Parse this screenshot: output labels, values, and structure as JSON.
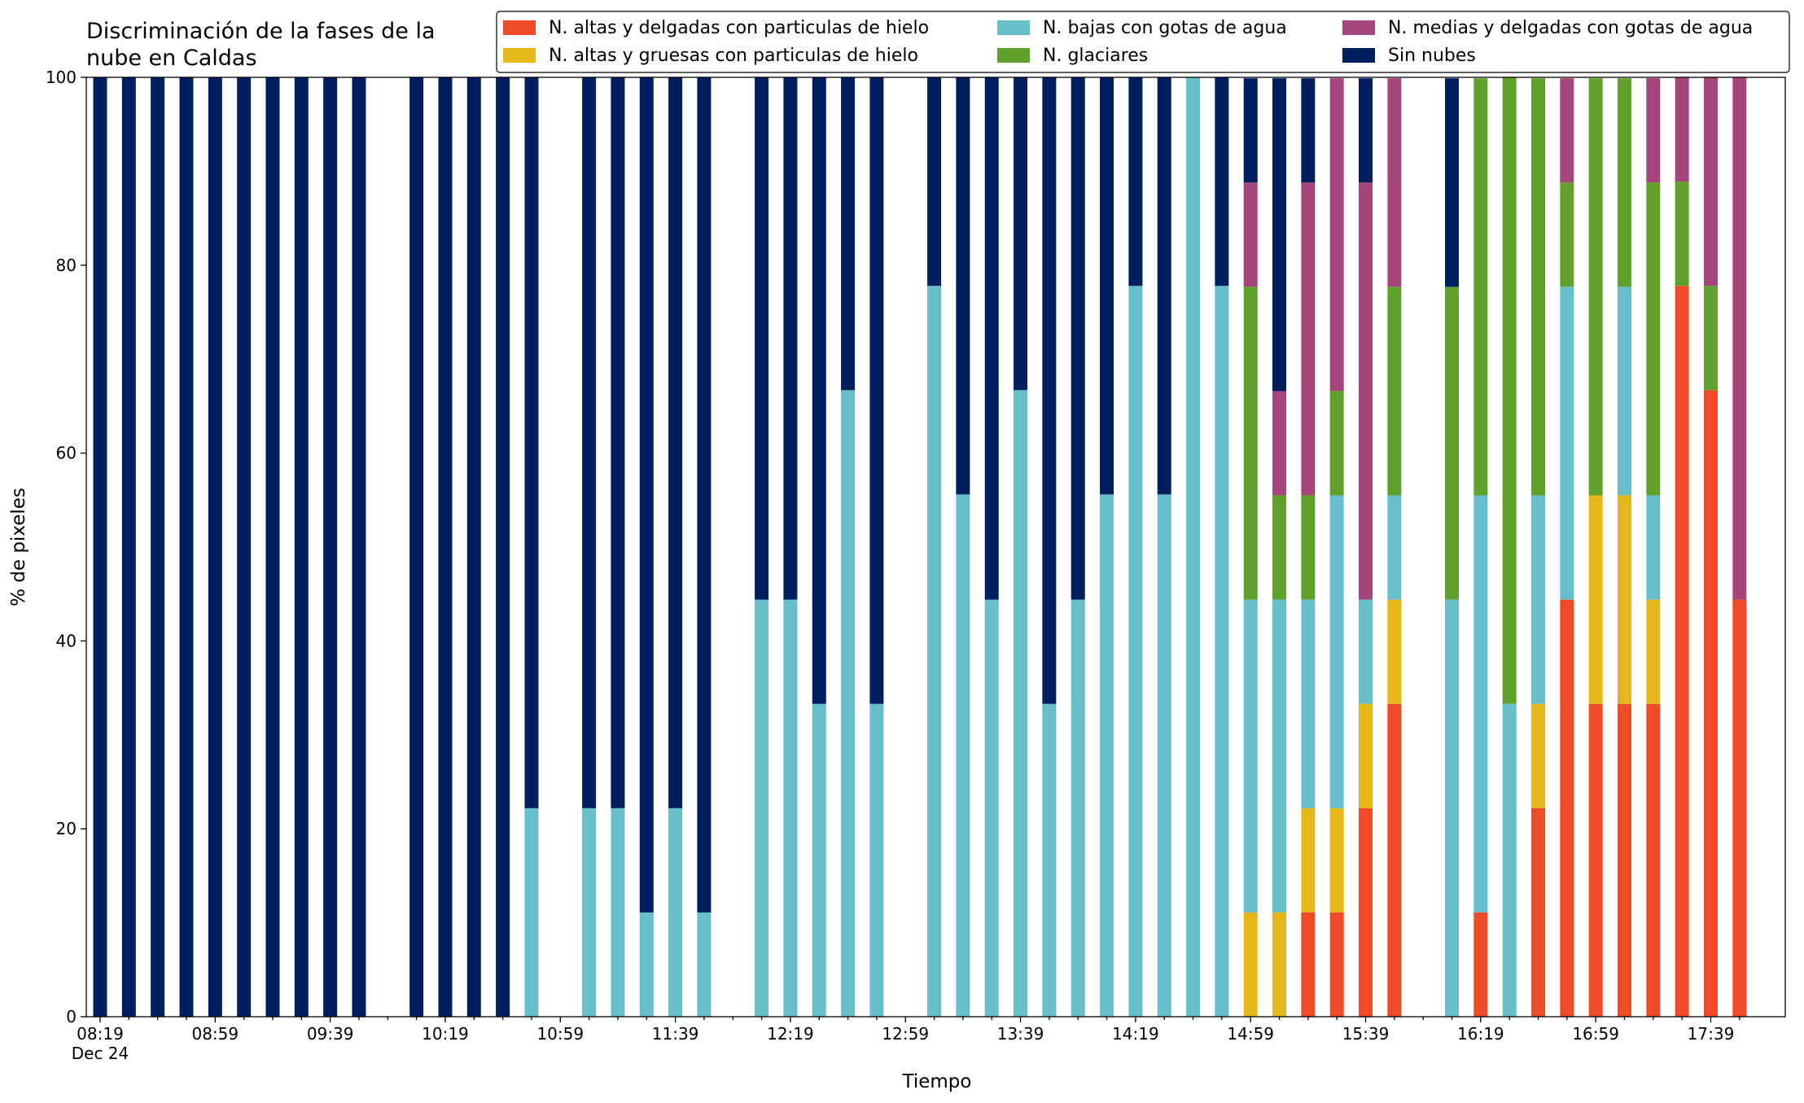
{
  "chart_data": {
    "type": "stacked_bar",
    "title": "Discriminación de la fases de la\nnube en Caldas",
    "x_label": "Tiempo",
    "y_label": "% de pixeles",
    "x_date_label": "Dec 24",
    "categories": [
      "08:19",
      null,
      null,
      null,
      "08:59",
      null,
      null,
      null,
      "09:39",
      null,
      null,
      null,
      "10:19",
      null,
      null,
      null,
      "10:59",
      null,
      null,
      null,
      "11:39",
      null,
      null,
      null,
      "12:19",
      null,
      null,
      null,
      "12:59",
      null,
      null,
      null,
      "13:39",
      null,
      null,
      null,
      "14:19",
      null,
      null,
      null,
      "14:59",
      null,
      null,
      null,
      "15:39",
      null,
      null,
      null,
      "16:19",
      null,
      null,
      null,
      "16:59",
      null,
      null,
      null,
      "17:39",
      null
    ],
    "ylim": [
      0,
      100
    ],
    "yticks": [
      0,
      20,
      40,
      60,
      80,
      100
    ],
    "legend": "top-right",
    "series": [
      {
        "name": "N. altas y delgadas con particulas de hielo",
        "color": "#f04a28",
        "values": [
          0,
          0,
          0,
          0,
          0,
          0,
          0,
          0,
          0,
          0,
          null,
          0,
          0,
          0,
          0,
          0,
          null,
          0,
          0,
          0,
          0,
          0,
          null,
          0,
          0,
          0,
          0,
          0,
          null,
          0,
          0,
          0,
          0,
          0,
          0,
          0,
          0,
          0,
          0,
          0,
          0,
          0,
          11.1,
          11.1,
          22.2,
          33.3,
          null,
          0,
          11.1,
          0,
          22.2,
          44.4,
          33.3,
          33.3,
          33.3,
          77.8,
          66.7,
          44.4
        ]
      },
      {
        "name": "N. altas y gruesas con particulas de hielo",
        "color": "#e6b817",
        "values": [
          0,
          0,
          0,
          0,
          0,
          0,
          0,
          0,
          0,
          0,
          null,
          0,
          0,
          0,
          0,
          0,
          null,
          0,
          0,
          0,
          0,
          0,
          null,
          0,
          0,
          0,
          0,
          0,
          null,
          0,
          0,
          0,
          0,
          0,
          0,
          0,
          0,
          0,
          0,
          0,
          11.1,
          11.1,
          11.1,
          11.1,
          11.1,
          11.1,
          null,
          0,
          0,
          0,
          11.1,
          0,
          22.2,
          22.2,
          11.1,
          0,
          0,
          0
        ]
      },
      {
        "name": "N. bajas con gotas de agua",
        "color": "#66bfcb",
        "values": [
          0,
          0,
          0,
          0,
          0,
          0,
          0,
          0,
          0,
          0,
          null,
          0,
          0,
          0,
          0,
          22.2,
          null,
          22.2,
          22.2,
          11.1,
          22.2,
          11.1,
          null,
          44.4,
          44.4,
          33.3,
          66.7,
          33.3,
          null,
          77.8,
          55.6,
          44.4,
          66.7,
          33.3,
          44.4,
          55.6,
          77.8,
          55.6,
          100,
          77.8,
          33.3,
          33.3,
          22.2,
          33.3,
          11.1,
          11.1,
          null,
          44.4,
          44.4,
          33.3,
          22.2,
          33.3,
          0,
          22.2,
          11.1,
          0,
          0,
          0
        ]
      },
      {
        "name": "N. glaciares",
        "color": "#5fa12b",
        "values": [
          0,
          0,
          0,
          0,
          0,
          0,
          0,
          0,
          0,
          0,
          null,
          0,
          0,
          0,
          0,
          0,
          null,
          0,
          0,
          0,
          0,
          0,
          null,
          0,
          0,
          0,
          0,
          0,
          null,
          0,
          0,
          0,
          0,
          0,
          0,
          0,
          0,
          0,
          0,
          0,
          33.3,
          11.1,
          11.1,
          11.1,
          0,
          22.2,
          null,
          33.3,
          44.4,
          66.7,
          44.4,
          11.1,
          44.4,
          22.2,
          33.3,
          11.1,
          11.1,
          0
        ]
      },
      {
        "name": "N. medias y delgadas con gotas de agua",
        "color": "#a4467c",
        "values": [
          0,
          0,
          0,
          0,
          0,
          0,
          0,
          0,
          0,
          0,
          null,
          0,
          0,
          0,
          0,
          0,
          null,
          0,
          0,
          0,
          0,
          0,
          null,
          0,
          0,
          0,
          0,
          0,
          null,
          0,
          0,
          0,
          0,
          0,
          0,
          0,
          0,
          0,
          0,
          0,
          11.1,
          11.1,
          33.3,
          33.3,
          44.4,
          22.2,
          null,
          0,
          0,
          0,
          0,
          11.1,
          0,
          0,
          11.1,
          11.1,
          22.2,
          55.6
        ]
      },
      {
        "name": "Sin nubes",
        "color": "#001f5f",
        "values": [
          100,
          100,
          100,
          100,
          100,
          100,
          100,
          100,
          100,
          100,
          null,
          100,
          100,
          100,
          100,
          77.8,
          null,
          77.8,
          77.8,
          88.9,
          77.8,
          88.9,
          null,
          55.6,
          55.6,
          66.7,
          33.3,
          66.7,
          null,
          22.2,
          44.4,
          55.6,
          33.3,
          66.7,
          55.6,
          44.4,
          22.2,
          44.4,
          0,
          22.2,
          11.1,
          33.3,
          11.1,
          0,
          11.1,
          0,
          null,
          22.2,
          0,
          0,
          0,
          0,
          0,
          0,
          0,
          0,
          0,
          0
        ]
      }
    ]
  }
}
